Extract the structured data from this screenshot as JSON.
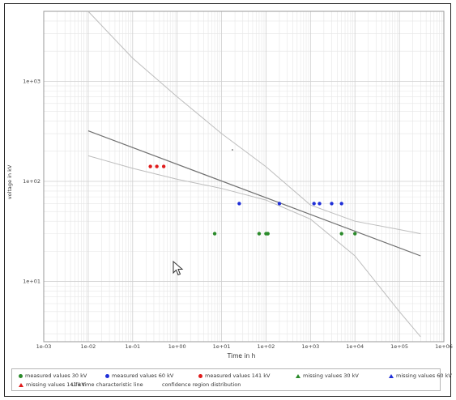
{
  "chart_data": {
    "type": "scatter",
    "xlabel": "Time in h",
    "ylabel": "voltage in kV",
    "xscale": "log",
    "yscale": "log",
    "xlim": [
      0.001,
      1000000
    ],
    "ylim": [
      2.5,
      5000
    ],
    "grid": true,
    "x_ticks": [
      "1e-03",
      "1e-02",
      "1e-01",
      "1e+00",
      "1e+01",
      "1e+02",
      "1e+03",
      "1e+04",
      "1e+05",
      "1e+06"
    ],
    "y_ticks": [
      "1e+01",
      "1e+02",
      "1e+03"
    ],
    "series": [
      {
        "name": "measured values 30 kV",
        "marker": "circle",
        "color": "#2a8a2a",
        "points": [
          [
            7,
            30
          ],
          [
            70,
            30
          ],
          [
            100,
            30
          ],
          [
            110,
            30
          ],
          [
            5000,
            30
          ],
          [
            10000,
            30
          ]
        ]
      },
      {
        "name": "measured values 60 kV",
        "marker": "circle",
        "color": "#1f2fd8",
        "points": [
          [
            25,
            60
          ],
          [
            200,
            60
          ],
          [
            1200,
            60
          ],
          [
            1600,
            60
          ],
          [
            3000,
            60
          ],
          [
            5000,
            60
          ]
        ]
      },
      {
        "name": "measured values 141 kV",
        "marker": "circle",
        "color": "#e01b1b",
        "points": [
          [
            0.25,
            141
          ],
          [
            0.35,
            141
          ],
          [
            0.5,
            141
          ]
        ]
      },
      {
        "name": "missing values 30 kV",
        "marker": "triangle",
        "color": "#2a8a2a",
        "points": []
      },
      {
        "name": "missing values 60 kV",
        "marker": "triangle",
        "color": "#1f2fd8",
        "points": []
      },
      {
        "name": "missing values 141 kV",
        "marker": "triangle",
        "color": "#e01b1b",
        "points": []
      }
    ],
    "lines": [
      {
        "name": "Life time characteristic line",
        "color": "#707070",
        "points": [
          [
            0.01,
            320
          ],
          [
            300000,
            18
          ]
        ]
      },
      {
        "name": "confidence region distribution",
        "color": "#bdbdbd",
        "role": "upper",
        "points": [
          [
            0.01,
            5000
          ],
          [
            0.1,
            1700
          ],
          [
            1,
            700
          ],
          [
            10,
            300
          ],
          [
            100,
            140
          ],
          [
            1000,
            58
          ],
          [
            10000,
            40
          ],
          [
            100000,
            33
          ],
          [
            300000,
            30
          ]
        ]
      },
      {
        "name": "confidence region distribution",
        "color": "#bdbdbd",
        "role": "lower",
        "points": [
          [
            0.01,
            180
          ],
          [
            0.1,
            135
          ],
          [
            1,
            105
          ],
          [
            10,
            85
          ],
          [
            100,
            65
          ],
          [
            1000,
            42
          ],
          [
            10000,
            18
          ],
          [
            100000,
            5
          ],
          [
            300000,
            2.8
          ]
        ]
      }
    ],
    "legend": {
      "position": "bottom",
      "items": [
        {
          "label": "measured values 30 kV",
          "symbol": "dot",
          "color": "#2a8a2a"
        },
        {
          "label": "measured values 60 kV",
          "symbol": "dot",
          "color": "#1f2fd8"
        },
        {
          "label": "measured values 141 kV",
          "symbol": "dot",
          "color": "#e01b1b"
        },
        {
          "label": "missing values 30 kV",
          "symbol": "tri",
          "color": "#2a8a2a"
        },
        {
          "label": "missing values 60 kV",
          "symbol": "tri",
          "color": "#1f2fd8"
        },
        {
          "label": "missing values 141 kV",
          "symbol": "tri",
          "color": "#e01b1b"
        },
        {
          "label": "Life time characteristic line",
          "symbol": "line",
          "color": "#707070"
        },
        {
          "label": "confidence region distribution",
          "symbol": "line",
          "color": "#bdbdbd"
        }
      ]
    }
  },
  "cursor_icon": "arrow-cursor-icon"
}
